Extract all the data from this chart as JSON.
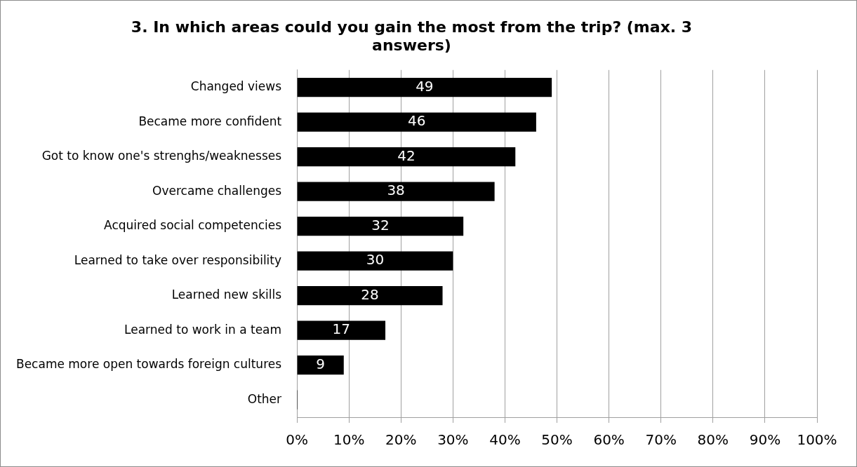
{
  "chart_data": {
    "type": "bar",
    "orientation": "horizontal",
    "title": "3. In which areas could you gain the most from the trip? (max. 3 answers)",
    "categories": [
      "Changed views",
      "Became more confident",
      "Got to know one's strenghs/weaknesses",
      "Overcame challenges",
      "Acquired social competencies",
      "Learned to take over responsibility",
      "Learned new skills",
      "Learned to work in a team",
      "Became more open towards foreign cultures",
      "Other"
    ],
    "values": [
      49,
      46,
      42,
      38,
      32,
      30,
      28,
      17,
      9,
      0
    ],
    "value_labels": [
      "49",
      "46",
      "42",
      "38",
      "32",
      "30",
      "28",
      "17",
      "9",
      null
    ],
    "color": "#000000",
    "xlim": [
      0,
      100
    ],
    "xticks": [
      {
        "value": 0,
        "label": "0%"
      },
      {
        "value": 10,
        "label": "10%"
      },
      {
        "value": 20,
        "label": "20%"
      },
      {
        "value": 30,
        "label": "30%"
      },
      {
        "value": 40,
        "label": "40%"
      },
      {
        "value": 50,
        "label": "50%"
      },
      {
        "value": 60,
        "label": "60%"
      },
      {
        "value": 70,
        "label": "70%"
      },
      {
        "value": 80,
        "label": "80%"
      },
      {
        "value": 90,
        "label": "90%"
      },
      {
        "value": 100,
        "label": "100%"
      }
    ],
    "grid": "x",
    "legend": false
  }
}
